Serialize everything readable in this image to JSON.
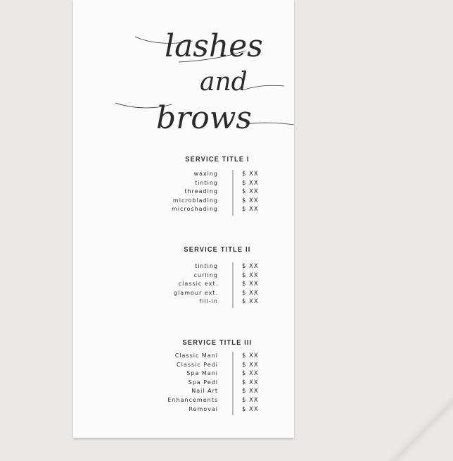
{
  "heading": {
    "line1": "lashes",
    "line2": "and",
    "line3": "brows"
  },
  "sections": [
    {
      "title": "SERVICE TITLE I",
      "items": [
        {
          "name": "waxing",
          "price": "$ XX"
        },
        {
          "name": "tinting",
          "price": "$ XX"
        },
        {
          "name": "threading",
          "price": "$ XX"
        },
        {
          "name": "microblading",
          "price": "$ XX"
        },
        {
          "name": "microshading",
          "price": "$ XX"
        }
      ]
    },
    {
      "title": "SERVICE TITLE II",
      "items": [
        {
          "name": "tinting",
          "price": "$ XX"
        },
        {
          "name": "curling",
          "price": "$ XX"
        },
        {
          "name": "classic ext.",
          "price": "$ XX"
        },
        {
          "name": "glamour ext.",
          "price": "$ XX"
        },
        {
          "name": "fill-in",
          "price": "$ XX"
        }
      ]
    },
    {
      "title": "SERVICE TITLE III",
      "items": [
        {
          "name": "Classic Mani",
          "price": "$ XX"
        },
        {
          "name": "Classic Pedi",
          "price": "$ XX"
        },
        {
          "name": "Spa Mani",
          "price": "$ XX"
        },
        {
          "name": "Spa Pedi",
          "price": "$ XX"
        },
        {
          "name": "Nail Art",
          "price": "$ XX"
        },
        {
          "name": "Enhancements",
          "price": "$ XX"
        },
        {
          "name": "Removal",
          "price": "$ XX"
        }
      ]
    }
  ]
}
